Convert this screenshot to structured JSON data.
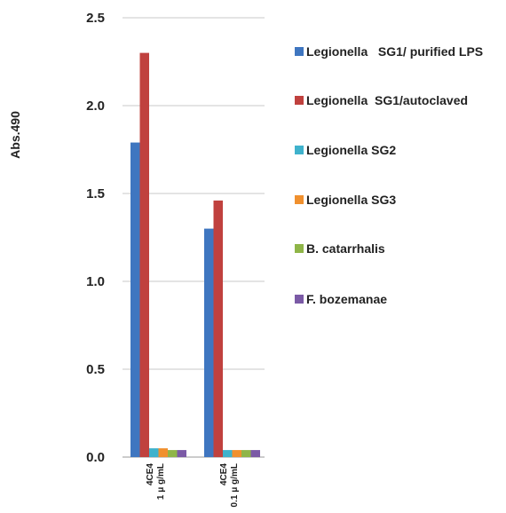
{
  "chart_data": {
    "type": "bar",
    "ylabel": "Abs.490",
    "ylim": [
      0,
      2.5
    ],
    "yticks": [
      "0.0",
      "0.5",
      "1.0",
      "1.5",
      "2.0",
      "2.5"
    ],
    "grid": true,
    "legend_position": "right",
    "categories": [
      {
        "line1": "4CE4",
        "line2": "1 μ g/mL"
      },
      {
        "line1": "4CE4",
        "line2": "0.1 μ g/mL"
      }
    ],
    "series": [
      {
        "name": "Legionella   SG1/ purified LPS",
        "color": "#3f76c0",
        "values": [
          1.79,
          1.3
        ]
      },
      {
        "name": "Legionella  SG1/autoclaved",
        "color": "#c0413e",
        "values": [
          2.3,
          1.46
        ]
      },
      {
        "name": "Legionella SG2",
        "color": "#3fb2cc",
        "values": [
          0.05,
          0.04
        ]
      },
      {
        "name": "Legionella SG3",
        "color": "#f0902e",
        "values": [
          0.05,
          0.04
        ]
      },
      {
        "name": "B. catarrhalis",
        "color": "#8fb548",
        "values": [
          0.04,
          0.04
        ]
      },
      {
        "name": "F. bozemanae",
        "color": "#7b5aa6",
        "values": [
          0.04,
          0.04
        ]
      }
    ]
  }
}
